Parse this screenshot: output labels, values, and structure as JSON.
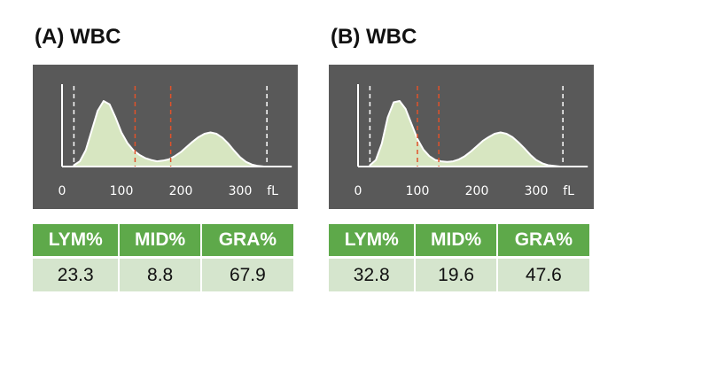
{
  "panels": [
    {
      "title": "(A) WBC",
      "columns": [
        "LYM%",
        "MID%",
        "GRA%"
      ],
      "values": [
        "23.3",
        "8.8",
        "67.9"
      ]
    },
    {
      "title": "(B) WBC",
      "columns": [
        "LYM%",
        "MID%",
        "GRA%"
      ],
      "values": [
        "32.8",
        "19.6",
        "47.6"
      ]
    }
  ],
  "chart_data": [
    {
      "type": "area",
      "title": "(A) WBC",
      "xlabel": "fL",
      "xticks": [
        0,
        100,
        200,
        300
      ],
      "xlim": [
        0,
        360
      ],
      "x": [
        20,
        30,
        40,
        50,
        60,
        70,
        80,
        90,
        100,
        110,
        120,
        130,
        140,
        150,
        160,
        170,
        180,
        190,
        200,
        210,
        220,
        230,
        240,
        250,
        260,
        270,
        280,
        290,
        300,
        310,
        320,
        330,
        340
      ],
      "series": [
        {
          "values": [
            0.02,
            0.08,
            0.25,
            0.55,
            0.85,
            1.0,
            0.95,
            0.75,
            0.52,
            0.36,
            0.25,
            0.18,
            0.13,
            0.1,
            0.08,
            0.09,
            0.11,
            0.16,
            0.22,
            0.3,
            0.38,
            0.45,
            0.5,
            0.52,
            0.5,
            0.44,
            0.35,
            0.24,
            0.14,
            0.07,
            0.03,
            0.01,
            0.0
          ]
        }
      ],
      "guide_lines": [
        {
          "x": 20,
          "color": "#ffffff",
          "style": "dashed"
        },
        {
          "x": 123,
          "color": "#e0522a",
          "style": "dashed"
        },
        {
          "x": 183,
          "color": "#e0522a",
          "style": "dashed"
        },
        {
          "x": 345,
          "color": "#ffffff",
          "style": "dashed"
        }
      ],
      "fill_color": "#d7e6c1"
    },
    {
      "type": "area",
      "title": "(B) WBC",
      "xlabel": "fL",
      "xticks": [
        0,
        100,
        200,
        300
      ],
      "xlim": [
        0,
        360
      ],
      "x": [
        20,
        30,
        40,
        50,
        60,
        70,
        80,
        90,
        100,
        110,
        120,
        130,
        140,
        150,
        160,
        170,
        180,
        190,
        200,
        210,
        220,
        230,
        240,
        250,
        260,
        270,
        280,
        290,
        300,
        310,
        320,
        330,
        340
      ],
      "series": [
        {
          "values": [
            0.02,
            0.1,
            0.35,
            0.75,
            0.98,
            1.0,
            0.88,
            0.65,
            0.42,
            0.26,
            0.16,
            0.1,
            0.08,
            0.07,
            0.08,
            0.11,
            0.16,
            0.23,
            0.31,
            0.39,
            0.45,
            0.5,
            0.52,
            0.5,
            0.45,
            0.37,
            0.28,
            0.18,
            0.1,
            0.05,
            0.02,
            0.01,
            0.0
          ]
        }
      ],
      "guide_lines": [
        {
          "x": 20,
          "color": "#ffffff",
          "style": "dashed"
        },
        {
          "x": 100,
          "color": "#e0522a",
          "style": "dashed"
        },
        {
          "x": 136,
          "color": "#e0522a",
          "style": "dashed"
        },
        {
          "x": 345,
          "color": "#ffffff",
          "style": "dashed"
        }
      ],
      "fill_color": "#d7e6c1"
    }
  ],
  "colors": {
    "plot_background": "#595959",
    "curve_fill": "#d7e6c1",
    "curve_stroke": "#ffffff",
    "gate_line": "#e0522a",
    "header_fill": "#5ea94a",
    "value_fill": "#d5e5cd"
  }
}
